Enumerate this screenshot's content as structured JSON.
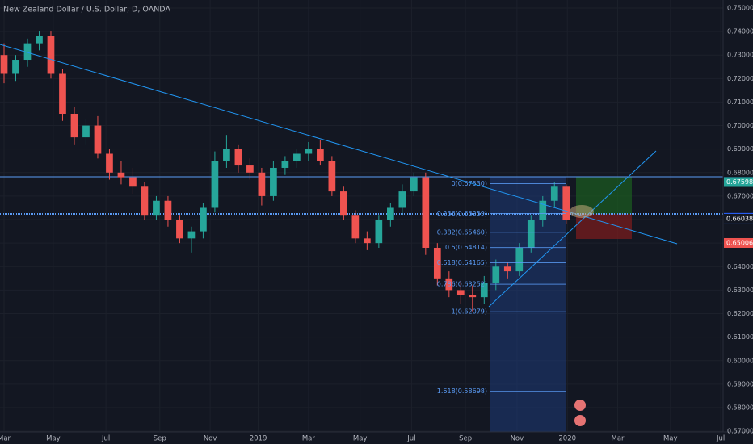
{
  "chart_data": {
    "type": "candlestick",
    "title": "New Zealand Dollar / U.S. Dollar, D, OANDA",
    "up_color": "#26a69a",
    "down_color": "#ef5350",
    "xlim": [
      0,
      61.4
    ],
    "xticks": [
      {
        "value": 0,
        "label": "Mar"
      },
      {
        "value": 4.2,
        "label": "May"
      },
      {
        "value": 8.7,
        "label": "Jul"
      },
      {
        "value": 13.3,
        "label": "Sep"
      },
      {
        "value": 17.6,
        "label": "Nov"
      },
      {
        "value": 21.7,
        "label": "2019"
      },
      {
        "value": 26,
        "label": "Mar"
      },
      {
        "value": 30.4,
        "label": "May"
      },
      {
        "value": 34.8,
        "label": "Jul"
      },
      {
        "value": 39.4,
        "label": "Sep"
      },
      {
        "value": 43.8,
        "label": "Nov"
      },
      {
        "value": 48.1,
        "label": "2020"
      },
      {
        "value": 52.4,
        "label": "Mar"
      },
      {
        "value": 56.9,
        "label": "May"
      },
      {
        "value": 61.2,
        "label": "Jul"
      }
    ],
    "ylim": [
      0.5697,
      0.7517
    ],
    "yticks": [
      {
        "value": 0.75,
        "label": "0.75000"
      },
      {
        "value": 0.74,
        "label": "0.74000"
      },
      {
        "value": 0.73,
        "label": "0.73000"
      },
      {
        "value": 0.72,
        "label": "0.72000"
      },
      {
        "value": 0.71,
        "label": "0.71000"
      },
      {
        "value": 0.7,
        "label": "0.70000"
      },
      {
        "value": 0.69,
        "label": "0.69000"
      },
      {
        "value": 0.68,
        "label": "0.68000"
      },
      {
        "value": 0.67,
        "label": "0.67000"
      },
      {
        "value": 0.66,
        "label": "0.66000"
      },
      {
        "value": 0.65,
        "label": "0.65000"
      },
      {
        "value": 0.64,
        "label": "0.64000"
      },
      {
        "value": 0.63,
        "label": "0.63000"
      },
      {
        "value": 0.62,
        "label": "0.62000"
      },
      {
        "value": 0.61,
        "label": "0.61000"
      },
      {
        "value": 0.6,
        "label": "0.60000"
      },
      {
        "value": 0.59,
        "label": "0.59000"
      },
      {
        "value": 0.58,
        "label": "0.58000"
      },
      {
        "value": 0.57,
        "label": "0.57000"
      }
    ],
    "open": [
      0.73,
      0.722,
      0.728,
      0.735,
      0.738,
      0.722,
      0.705,
      0.695,
      0.7,
      0.688,
      0.68,
      0.678,
      0.674,
      0.662,
      0.668,
      0.66,
      0.652,
      0.655,
      0.665,
      0.685,
      0.69,
      0.683,
      0.68,
      0.67,
      0.682,
      0.685,
      0.688,
      0.69,
      0.685,
      0.672,
      0.662,
      0.652,
      0.65,
      0.66,
      0.665,
      0.672,
      0.678,
      0.648,
      0.635,
      0.63,
      0.628,
      0.627,
      0.633,
      0.64,
      0.638,
      0.648,
      0.66,
      0.668,
      0.674
    ],
    "high": [
      0.735,
      0.73,
      0.737,
      0.74,
      0.74,
      0.724,
      0.708,
      0.703,
      0.704,
      0.69,
      0.685,
      0.682,
      0.676,
      0.67,
      0.67,
      0.662,
      0.657,
      0.667,
      0.689,
      0.696,
      0.692,
      0.686,
      0.682,
      0.685,
      0.687,
      0.69,
      0.693,
      0.694,
      0.687,
      0.674,
      0.664,
      0.655,
      0.662,
      0.667,
      0.675,
      0.68,
      0.68,
      0.65,
      0.638,
      0.634,
      0.632,
      0.636,
      0.643,
      0.642,
      0.65,
      0.662,
      0.67,
      0.676,
      0.675
    ],
    "low": [
      0.718,
      0.719,
      0.725,
      0.732,
      0.72,
      0.702,
      0.692,
      0.692,
      0.686,
      0.677,
      0.675,
      0.671,
      0.66,
      0.66,
      0.657,
      0.65,
      0.646,
      0.652,
      0.663,
      0.682,
      0.68,
      0.677,
      0.666,
      0.668,
      0.679,
      0.682,
      0.685,
      0.683,
      0.67,
      0.66,
      0.65,
      0.647,
      0.648,
      0.657,
      0.662,
      0.67,
      0.645,
      0.632,
      0.627,
      0.624,
      0.621,
      0.624,
      0.63,
      0.635,
      0.636,
      0.646,
      0.657,
      0.665,
      0.658
    ],
    "close": [
      0.722,
      0.728,
      0.735,
      0.738,
      0.722,
      0.705,
      0.695,
      0.7,
      0.688,
      0.68,
      0.678,
      0.674,
      0.662,
      0.668,
      0.66,
      0.652,
      0.655,
      0.665,
      0.685,
      0.69,
      0.683,
      0.68,
      0.67,
      0.682,
      0.685,
      0.688,
      0.69,
      0.685,
      0.672,
      0.662,
      0.652,
      0.65,
      0.66,
      0.665,
      0.672,
      0.678,
      0.648,
      0.635,
      0.63,
      0.628,
      0.627,
      0.633,
      0.64,
      0.638,
      0.648,
      0.66,
      0.668,
      0.674,
      0.66
    ],
    "fib_levels": [
      {
        "label": "0(0.67530)",
        "value": 0.6753
      },
      {
        "label": "0.236(0.66259)",
        "value": 0.66259
      },
      {
        "label": "0.382(0.65460)",
        "value": 0.6546
      },
      {
        "label": "0.5(0.64814)",
        "value": 0.64814
      },
      {
        "label": "0.618(0.64165)",
        "value": 0.64165
      },
      {
        "label": "0.786(0.63252)",
        "value": 0.63252
      },
      {
        "label": "1(0.62079)",
        "value": 0.62079
      },
      {
        "label": "1.618(0.58698)",
        "value": 0.58698
      }
    ],
    "price_markers": [
      {
        "label": "0.67602",
        "value": 0.67602,
        "color": "#2196f3"
      },
      {
        "label": "0.67598",
        "value": 0.67598,
        "color": "#26a69a"
      },
      {
        "label": "0.66075",
        "value": 0.66075,
        "color": "#2962ff"
      },
      {
        "label": "0.66033",
        "value": 0.66033,
        "color": "#2962ff"
      },
      {
        "label": "0.66038",
        "value": 0.66038,
        "color": "#131722"
      },
      {
        "label": "0.65006",
        "value": 0.65006,
        "color": "#ef5350"
      }
    ]
  }
}
